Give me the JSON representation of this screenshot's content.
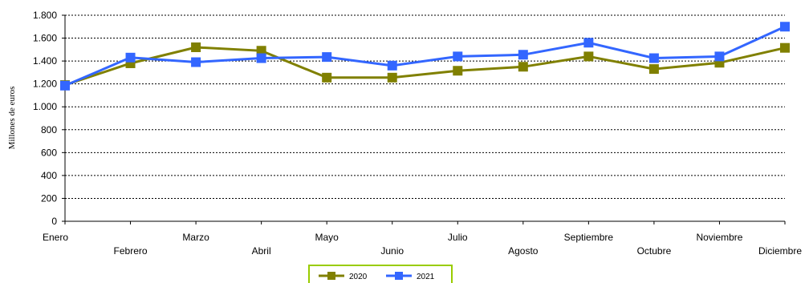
{
  "chart_data": {
    "type": "line",
    "categories": [
      "Enero",
      "Febrero",
      "Marzo",
      "Abril",
      "Mayo",
      "Junio",
      "Julio",
      "Agosto",
      "Septiembre",
      "Octubre",
      "Noviembre",
      "Diciembre"
    ],
    "series": [
      {
        "name": "2020",
        "color": "#808000",
        "values": [
          1190,
          1380,
          1520,
          1490,
          1255,
          1255,
          1315,
          1350,
          1440,
          1330,
          1385,
          1515
        ]
      },
      {
        "name": "2021",
        "color": "#3366ff",
        "values": [
          1185,
          1430,
          1390,
          1425,
          1435,
          1360,
          1440,
          1455,
          1560,
          1425,
          1440,
          1700
        ]
      }
    ],
    "ylabel": "Millones de euros",
    "ylim": [
      0,
      1800
    ],
    "yticks": [
      0,
      200,
      400,
      600,
      800,
      1000,
      1200,
      1400,
      1600,
      1800
    ],
    "ytick_labels": [
      "0",
      "200",
      "400",
      "600",
      "800",
      "1.000",
      "1.200",
      "1.400",
      "1.600",
      "1.800"
    ],
    "grid": true,
    "legend_position": "bottom-center",
    "legend_border_color": "#99cc00"
  }
}
